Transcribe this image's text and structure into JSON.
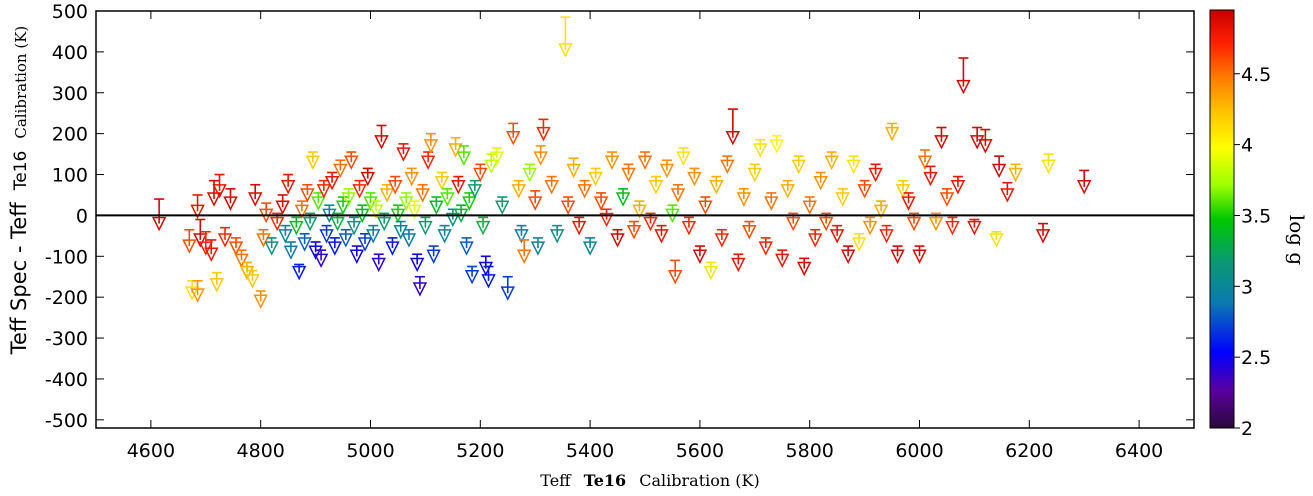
{
  "chart_data": {
    "type": "scatter",
    "title": "",
    "xlabel": "Teff Te16 Calibration (K)",
    "xlabel_parts": [
      "Teff",
      "Te16",
      "Calibration (K)"
    ],
    "ylabel": "Teff Spec - Teff Te16 Calibration (K)",
    "ylabel_parts": [
      "Teff  Spec - Teff",
      "Te16",
      "Calibration (K)"
    ],
    "xlim": [
      4500,
      6500
    ],
    "ylim": [
      -520,
      500
    ],
    "xticks": [
      4600,
      4800,
      5000,
      5200,
      5400,
      5600,
      5800,
      6000,
      6200,
      6400
    ],
    "yticks": [
      500,
      400,
      300,
      200,
      100,
      0,
      -100,
      -200,
      -300,
      -400,
      -500
    ],
    "marker": "down-triangle with upward error bar",
    "zero_line": true,
    "colorbar": {
      "label": "log g",
      "range": [
        2,
        4.95
      ],
      "ticks": [
        2,
        2.5,
        3,
        3.5,
        4,
        4.5
      ],
      "tick_labels": [
        "2",
        "2.5",
        "3",
        "3.5",
        "4",
        "4.5"
      ],
      "colormap": [
        "#2a0a3a",
        "#5a00a0",
        "#0000ff",
        "#0a7ab0",
        "#0a9a70",
        "#00c800",
        "#9aff00",
        "#ffff00",
        "#ffc800",
        "#ff7a00",
        "#ff2000",
        "#c80000"
      ]
    },
    "points": [
      {
        "x": 4615,
        "y": -20,
        "err": 60,
        "g": 4.9
      },
      {
        "x": 4670,
        "y": -75,
        "err": 40,
        "g": 4.6
      },
      {
        "x": 4675,
        "y": -190,
        "err": 30,
        "g": 4.1
      },
      {
        "x": 4685,
        "y": -195,
        "err": 35,
        "g": 4.4
      },
      {
        "x": 4685,
        "y": 10,
        "err": 40,
        "g": 4.8
      },
      {
        "x": 4690,
        "y": -60,
        "err": 50,
        "g": 4.9
      },
      {
        "x": 4700,
        "y": -80,
        "err": 40,
        "g": 4.7
      },
      {
        "x": 4710,
        "y": -95,
        "err": 35,
        "g": 4.8
      },
      {
        "x": 4715,
        "y": 40,
        "err": 45,
        "g": 4.9
      },
      {
        "x": 4720,
        "y": -170,
        "err": 30,
        "g": 4.2
      },
      {
        "x": 4725,
        "y": 60,
        "err": 40,
        "g": 4.8
      },
      {
        "x": 4735,
        "y": -60,
        "err": 30,
        "g": 4.7
      },
      {
        "x": 4745,
        "y": 30,
        "err": 35,
        "g": 4.9
      },
      {
        "x": 4755,
        "y": -80,
        "err": 25,
        "g": 4.6
      },
      {
        "x": 4765,
        "y": -110,
        "err": 25,
        "g": 4.5
      },
      {
        "x": 4775,
        "y": -140,
        "err": 25,
        "g": 4.3
      },
      {
        "x": 4785,
        "y": -160,
        "err": 25,
        "g": 4.2
      },
      {
        "x": 4790,
        "y": 40,
        "err": 35,
        "g": 4.9
      },
      {
        "x": 4800,
        "y": -210,
        "err": 25,
        "g": 4.4
      },
      {
        "x": 4805,
        "y": -60,
        "err": 25,
        "g": 4.5
      },
      {
        "x": 4810,
        "y": 0,
        "err": 30,
        "g": 4.6
      },
      {
        "x": 4820,
        "y": -80,
        "err": 25,
        "g": 3.1
      },
      {
        "x": 4830,
        "y": -20,
        "err": 25,
        "g": 4.7
      },
      {
        "x": 4840,
        "y": 20,
        "err": 30,
        "g": 4.9
      },
      {
        "x": 4845,
        "y": -50,
        "err": 25,
        "g": 3.0
      },
      {
        "x": 4850,
        "y": 70,
        "err": 30,
        "g": 4.8
      },
      {
        "x": 4855,
        "y": -90,
        "err": 25,
        "g": 2.9
      },
      {
        "x": 4865,
        "y": -30,
        "err": 25,
        "g": 3.4
      },
      {
        "x": 4870,
        "y": -140,
        "err": 20,
        "g": 2.6
      },
      {
        "x": 4875,
        "y": 10,
        "err": 25,
        "g": 4.5
      },
      {
        "x": 4880,
        "y": -70,
        "err": 25,
        "g": 2.8
      },
      {
        "x": 4885,
        "y": 50,
        "err": 25,
        "g": 4.6
      },
      {
        "x": 4890,
        "y": -20,
        "err": 25,
        "g": 3.2
      },
      {
        "x": 4895,
        "y": 130,
        "err": 25,
        "g": 4.2
      },
      {
        "x": 4900,
        "y": -90,
        "err": 25,
        "g": 2.5
      },
      {
        "x": 4905,
        "y": 30,
        "err": 25,
        "g": 3.6
      },
      {
        "x": 4910,
        "y": -110,
        "err": 25,
        "g": 2.4
      },
      {
        "x": 4915,
        "y": 60,
        "err": 25,
        "g": 4.7
      },
      {
        "x": 4920,
        "y": -50,
        "err": 25,
        "g": 2.7
      },
      {
        "x": 4925,
        "y": 0,
        "err": 25,
        "g": 3.0
      },
      {
        "x": 4930,
        "y": 80,
        "err": 25,
        "g": 4.8
      },
      {
        "x": 4935,
        "y": -80,
        "err": 25,
        "g": 2.6
      },
      {
        "x": 4940,
        "y": -20,
        "err": 25,
        "g": 3.3
      },
      {
        "x": 4945,
        "y": 110,
        "err": 25,
        "g": 4.5
      },
      {
        "x": 4950,
        "y": 20,
        "err": 25,
        "g": 3.5
      },
      {
        "x": 4955,
        "y": -60,
        "err": 25,
        "g": 2.8
      },
      {
        "x": 4960,
        "y": 40,
        "err": 25,
        "g": 3.7
      },
      {
        "x": 4965,
        "y": 130,
        "err": 25,
        "g": 4.6
      },
      {
        "x": 4970,
        "y": -30,
        "err": 25,
        "g": 3.1
      },
      {
        "x": 4975,
        "y": -100,
        "err": 25,
        "g": 2.5
      },
      {
        "x": 4980,
        "y": 60,
        "err": 25,
        "g": 4.7
      },
      {
        "x": 4985,
        "y": 0,
        "err": 25,
        "g": 3.4
      },
      {
        "x": 4990,
        "y": -70,
        "err": 25,
        "g": 2.7
      },
      {
        "x": 4995,
        "y": 90,
        "err": 25,
        "g": 4.9
      },
      {
        "x": 5000,
        "y": 30,
        "err": 25,
        "g": 3.6
      },
      {
        "x": 5005,
        "y": -50,
        "err": 25,
        "g": 2.9
      },
      {
        "x": 5010,
        "y": 10,
        "err": 25,
        "g": 3.8
      },
      {
        "x": 5015,
        "y": -120,
        "err": 25,
        "g": 2.4
      },
      {
        "x": 5020,
        "y": 180,
        "err": 40,
        "g": 4.9
      },
      {
        "x": 5025,
        "y": -20,
        "err": 25,
        "g": 3.2
      },
      {
        "x": 5030,
        "y": 50,
        "err": 25,
        "g": 4.3
      },
      {
        "x": 5040,
        "y": -80,
        "err": 25,
        "g": 2.6
      },
      {
        "x": 5045,
        "y": 70,
        "err": 25,
        "g": 4.6
      },
      {
        "x": 5050,
        "y": 0,
        "err": 25,
        "g": 3.5
      },
      {
        "x": 5055,
        "y": -40,
        "err": 25,
        "g": 3.0
      },
      {
        "x": 5060,
        "y": 150,
        "err": 25,
        "g": 4.8
      },
      {
        "x": 5065,
        "y": 30,
        "err": 25,
        "g": 3.7
      },
      {
        "x": 5070,
        "y": -60,
        "err": 25,
        "g": 2.9
      },
      {
        "x": 5075,
        "y": 90,
        "err": 25,
        "g": 4.4
      },
      {
        "x": 5080,
        "y": 10,
        "err": 25,
        "g": 3.9
      },
      {
        "x": 5085,
        "y": -120,
        "err": 25,
        "g": 2.5
      },
      {
        "x": 5090,
        "y": -180,
        "err": 30,
        "g": 2.4
      },
      {
        "x": 5095,
        "y": 50,
        "err": 25,
        "g": 4.5
      },
      {
        "x": 5100,
        "y": -30,
        "err": 25,
        "g": 3.2
      },
      {
        "x": 5105,
        "y": 130,
        "err": 25,
        "g": 4.7
      },
      {
        "x": 5110,
        "y": 170,
        "err": 30,
        "g": 4.4
      },
      {
        "x": 5115,
        "y": -100,
        "err": 25,
        "g": 2.7
      },
      {
        "x": 5120,
        "y": 20,
        "err": 25,
        "g": 3.4
      },
      {
        "x": 5130,
        "y": 80,
        "err": 25,
        "g": 4.2
      },
      {
        "x": 5135,
        "y": -50,
        "err": 25,
        "g": 3.0
      },
      {
        "x": 5140,
        "y": 40,
        "err": 25,
        "g": 3.6
      },
      {
        "x": 5150,
        "y": -10,
        "err": 25,
        "g": 3.1
      },
      {
        "x": 5155,
        "y": 160,
        "err": 30,
        "g": 4.3
      },
      {
        "x": 5160,
        "y": 70,
        "err": 25,
        "g": 4.8
      },
      {
        "x": 5165,
        "y": 0,
        "err": 25,
        "g": 3.3
      },
      {
        "x": 5170,
        "y": 140,
        "err": 30,
        "g": 3.6
      },
      {
        "x": 5175,
        "y": -80,
        "err": 25,
        "g": 2.8
      },
      {
        "x": 5180,
        "y": 30,
        "err": 25,
        "g": 3.5
      },
      {
        "x": 5185,
        "y": -150,
        "err": 25,
        "g": 2.7
      },
      {
        "x": 5190,
        "y": 60,
        "err": 25,
        "g": 3.2
      },
      {
        "x": 5200,
        "y": 100,
        "err": 25,
        "g": 4.6
      },
      {
        "x": 5205,
        "y": -30,
        "err": 25,
        "g": 3.3
      },
      {
        "x": 5210,
        "y": -130,
        "err": 30,
        "g": 2.5
      },
      {
        "x": 5215,
        "y": -160,
        "err": 35,
        "g": 2.6
      },
      {
        "x": 5220,
        "y": 120,
        "err": 30,
        "g": 3.8
      },
      {
        "x": 5230,
        "y": 140,
        "err": 25,
        "g": 3.9
      },
      {
        "x": 5240,
        "y": 20,
        "err": 25,
        "g": 3.2
      },
      {
        "x": 5250,
        "y": -190,
        "err": 40,
        "g": 2.7
      },
      {
        "x": 5260,
        "y": 190,
        "err": 35,
        "g": 4.6
      },
      {
        "x": 5270,
        "y": 60,
        "err": 25,
        "g": 4.3
      },
      {
        "x": 5275,
        "y": -50,
        "err": 25,
        "g": 2.9
      },
      {
        "x": 5280,
        "y": -100,
        "err": 40,
        "g": 4.5
      },
      {
        "x": 5290,
        "y": 100,
        "err": 25,
        "g": 3.7
      },
      {
        "x": 5300,
        "y": 30,
        "err": 30,
        "g": 4.6
      },
      {
        "x": 5305,
        "y": -80,
        "err": 25,
        "g": 3.0
      },
      {
        "x": 5310,
        "y": 140,
        "err": 30,
        "g": 4.4
      },
      {
        "x": 5315,
        "y": 200,
        "err": 35,
        "g": 4.7
      },
      {
        "x": 5330,
        "y": 70,
        "err": 25,
        "g": 4.5
      },
      {
        "x": 5340,
        "y": -50,
        "err": 25,
        "g": 3.1
      },
      {
        "x": 5355,
        "y": 405,
        "err": 80,
        "g": 4.1
      },
      {
        "x": 5360,
        "y": 20,
        "err": 25,
        "g": 4.6
      },
      {
        "x": 5370,
        "y": 110,
        "err": 30,
        "g": 4.3
      },
      {
        "x": 5380,
        "y": -30,
        "err": 25,
        "g": 4.8
      },
      {
        "x": 5390,
        "y": 60,
        "err": 25,
        "g": 4.5
      },
      {
        "x": 5400,
        "y": -80,
        "err": 25,
        "g": 3.0
      },
      {
        "x": 5410,
        "y": 90,
        "err": 25,
        "g": 4.2
      },
      {
        "x": 5420,
        "y": 30,
        "err": 25,
        "g": 4.6
      },
      {
        "x": 5430,
        "y": -10,
        "err": 25,
        "g": 4.7
      },
      {
        "x": 5440,
        "y": 130,
        "err": 25,
        "g": 4.4
      },
      {
        "x": 5450,
        "y": -60,
        "err": 25,
        "g": 4.9
      },
      {
        "x": 5460,
        "y": 40,
        "err": 25,
        "g": 3.4
      },
      {
        "x": 5470,
        "y": 100,
        "err": 25,
        "g": 4.5
      },
      {
        "x": 5480,
        "y": -40,
        "err": 25,
        "g": 4.6
      },
      {
        "x": 5490,
        "y": 10,
        "err": 25,
        "g": 4.3
      },
      {
        "x": 5500,
        "y": 130,
        "err": 25,
        "g": 4.5
      },
      {
        "x": 5510,
        "y": -20,
        "err": 25,
        "g": 4.7
      },
      {
        "x": 5520,
        "y": 70,
        "err": 25,
        "g": 4.2
      },
      {
        "x": 5530,
        "y": -50,
        "err": 25,
        "g": 4.8
      },
      {
        "x": 5540,
        "y": 110,
        "err": 25,
        "g": 4.4
      },
      {
        "x": 5550,
        "y": 0,
        "err": 25,
        "g": 3.6
      },
      {
        "x": 5555,
        "y": -150,
        "err": 40,
        "g": 4.6
      },
      {
        "x": 5560,
        "y": 50,
        "err": 25,
        "g": 4.5
      },
      {
        "x": 5570,
        "y": 140,
        "err": 25,
        "g": 4.1
      },
      {
        "x": 5580,
        "y": -30,
        "err": 25,
        "g": 4.7
      },
      {
        "x": 5590,
        "y": 90,
        "err": 25,
        "g": 4.4
      },
      {
        "x": 5600,
        "y": -100,
        "err": 25,
        "g": 4.9
      },
      {
        "x": 5610,
        "y": 20,
        "err": 25,
        "g": 4.6
      },
      {
        "x": 5620,
        "y": -140,
        "err": 25,
        "g": 4.1
      },
      {
        "x": 5630,
        "y": 70,
        "err": 25,
        "g": 4.3
      },
      {
        "x": 5640,
        "y": -60,
        "err": 25,
        "g": 4.7
      },
      {
        "x": 5650,
        "y": 120,
        "err": 25,
        "g": 4.5
      },
      {
        "x": 5660,
        "y": 190,
        "err": 70,
        "g": 4.9
      },
      {
        "x": 5670,
        "y": -120,
        "err": 25,
        "g": 4.8
      },
      {
        "x": 5680,
        "y": 40,
        "err": 25,
        "g": 4.4
      },
      {
        "x": 5690,
        "y": -40,
        "err": 25,
        "g": 4.6
      },
      {
        "x": 5700,
        "y": 100,
        "err": 25,
        "g": 4.2
      },
      {
        "x": 5710,
        "y": 160,
        "err": 25,
        "g": 4.1
      },
      {
        "x": 5720,
        "y": -80,
        "err": 25,
        "g": 4.7
      },
      {
        "x": 5730,
        "y": 30,
        "err": 25,
        "g": 4.5
      },
      {
        "x": 5740,
        "y": 170,
        "err": 25,
        "g": 4.0
      },
      {
        "x": 5750,
        "y": -110,
        "err": 25,
        "g": 4.8
      },
      {
        "x": 5760,
        "y": 60,
        "err": 25,
        "g": 4.3
      },
      {
        "x": 5770,
        "y": -20,
        "err": 25,
        "g": 4.6
      },
      {
        "x": 5780,
        "y": 120,
        "err": 25,
        "g": 4.2
      },
      {
        "x": 5790,
        "y": -130,
        "err": 25,
        "g": 4.9
      },
      {
        "x": 5800,
        "y": 20,
        "err": 25,
        "g": 4.5
      },
      {
        "x": 5810,
        "y": -60,
        "err": 25,
        "g": 4.7
      },
      {
        "x": 5820,
        "y": 80,
        "err": 25,
        "g": 4.4
      },
      {
        "x": 5830,
        "y": -20,
        "err": 25,
        "g": 4.6
      },
      {
        "x": 5840,
        "y": 130,
        "err": 25,
        "g": 4.3
      },
      {
        "x": 5850,
        "y": -50,
        "err": 25,
        "g": 4.8
      },
      {
        "x": 5860,
        "y": 40,
        "err": 25,
        "g": 4.2
      },
      {
        "x": 5870,
        "y": -100,
        "err": 25,
        "g": 4.9
      },
      {
        "x": 5880,
        "y": 120,
        "err": 25,
        "g": 4.1
      },
      {
        "x": 5890,
        "y": -70,
        "err": 25,
        "g": 4.1
      },
      {
        "x": 5900,
        "y": 60,
        "err": 25,
        "g": 4.6
      },
      {
        "x": 5910,
        "y": -30,
        "err": 25,
        "g": 4.4
      },
      {
        "x": 5920,
        "y": 100,
        "err": 25,
        "g": 4.8
      },
      {
        "x": 5930,
        "y": 10,
        "err": 25,
        "g": 4.3
      },
      {
        "x": 5940,
        "y": -50,
        "err": 25,
        "g": 4.7
      },
      {
        "x": 5950,
        "y": 200,
        "err": 25,
        "g": 4.3
      },
      {
        "x": 5960,
        "y": -100,
        "err": 25,
        "g": 4.9
      },
      {
        "x": 5970,
        "y": 60,
        "err": 25,
        "g": 4.2
      },
      {
        "x": 5980,
        "y": 30,
        "err": 25,
        "g": 4.8
      },
      {
        "x": 5990,
        "y": -20,
        "err": 25,
        "g": 4.6
      },
      {
        "x": 6000,
        "y": -100,
        "err": 25,
        "g": 4.9
      },
      {
        "x": 6010,
        "y": 130,
        "err": 30,
        "g": 4.5
      },
      {
        "x": 6020,
        "y": 90,
        "err": 30,
        "g": 4.8
      },
      {
        "x": 6030,
        "y": -20,
        "err": 25,
        "g": 4.4
      },
      {
        "x": 6040,
        "y": 180,
        "err": 35,
        "g": 4.9
      },
      {
        "x": 6050,
        "y": 40,
        "err": 25,
        "g": 4.6
      },
      {
        "x": 6060,
        "y": -30,
        "err": 25,
        "g": 4.7
      },
      {
        "x": 6070,
        "y": 70,
        "err": 25,
        "g": 4.8
      },
      {
        "x": 6080,
        "y": 315,
        "err": 70,
        "g": 4.9
      },
      {
        "x": 6100,
        "y": -30,
        "err": 20,
        "g": 4.8
      },
      {
        "x": 6105,
        "y": 180,
        "err": 35,
        "g": 4.9
      },
      {
        "x": 6120,
        "y": 170,
        "err": 40,
        "g": 4.9
      },
      {
        "x": 6140,
        "y": -60,
        "err": 20,
        "g": 4.1
      },
      {
        "x": 6145,
        "y": 110,
        "err": 35,
        "g": 4.9
      },
      {
        "x": 6160,
        "y": 50,
        "err": 30,
        "g": 4.8
      },
      {
        "x": 6175,
        "y": 100,
        "err": 25,
        "g": 4.3
      },
      {
        "x": 6225,
        "y": -50,
        "err": 30,
        "g": 4.9
      },
      {
        "x": 6235,
        "y": 120,
        "err": 30,
        "g": 4.1
      },
      {
        "x": 6300,
        "y": 70,
        "err": 40,
        "g": 4.9
      }
    ]
  }
}
